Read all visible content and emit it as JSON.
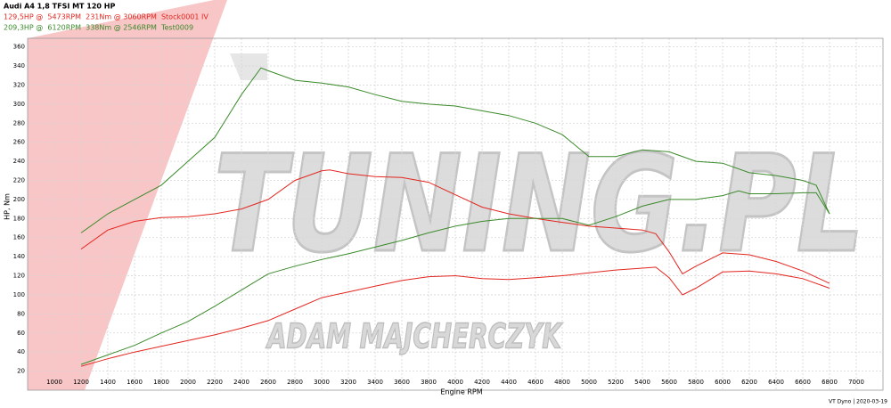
{
  "chart_data": {
    "type": "line",
    "title": "Audi A4 1,8 TFSI MT 120 HP",
    "legend": [
      {
        "text": "129,5HP @  5473RPM  231Nm @ 3060RPM  Stock0001 IV",
        "color": "#e3261f"
      },
      {
        "text": "209,3HP @  6120RPM  338Nm @ 2546RPM  Test0009",
        "color": "#3b8a2b"
      }
    ],
    "watermark": [
      "TUNING.PL",
      "ADAM MAJCHERCZYK"
    ],
    "xlabel": "Engine RPM",
    "ylabel": "HP, Nm",
    "footer": "VT Dyno | 2020-03-19",
    "xlim": [
      800,
      7200
    ],
    "ylim": [
      0,
      369
    ],
    "xticks": [
      1000,
      1200,
      1400,
      1600,
      1800,
      2000,
      2200,
      2400,
      2600,
      2800,
      3000,
      3200,
      3400,
      3600,
      3800,
      4000,
      4200,
      4400,
      4600,
      4800,
      5000,
      5200,
      5400,
      5600,
      5800,
      6000,
      6200,
      6400,
      6600,
      6800,
      7000
    ],
    "yticks": [
      20,
      40,
      60,
      80,
      100,
      120,
      140,
      160,
      180,
      200,
      220,
      240,
      260,
      280,
      300,
      320,
      340,
      360
    ],
    "grid": true,
    "series": [
      {
        "color": "#e3261f",
        "x": [
          1200,
          1400,
          1600,
          1800,
          2000,
          2200,
          2400,
          2600,
          2800,
          3000,
          3060,
          3200,
          3400,
          3600,
          3800,
          4000,
          4200,
          4400,
          4600,
          4800,
          5000,
          5200,
          5400,
          5500,
          5600,
          5700,
          5800,
          6000,
          6200,
          6400,
          6600,
          6800
        ],
        "values": [
          148,
          168,
          177,
          181,
          182,
          185,
          190,
          200,
          220,
          230,
          231,
          227,
          224,
          223,
          218,
          205,
          192,
          185,
          180,
          176,
          172,
          170,
          168,
          164,
          145,
          122,
          130,
          144,
          142,
          135,
          125,
          112
        ]
      },
      {
        "color": "#e3261f",
        "x": [
          1200,
          1400,
          1600,
          1800,
          2000,
          2200,
          2400,
          2600,
          2800,
          3000,
          3200,
          3400,
          3600,
          3800,
          4000,
          4200,
          4400,
          4600,
          4800,
          5000,
          5200,
          5400,
          5500,
          5600,
          5700,
          5800,
          6000,
          6200,
          6400,
          6600,
          6800
        ],
        "values": [
          25,
          33,
          40,
          46,
          52,
          58,
          65,
          73,
          85,
          97,
          103,
          109,
          115,
          119,
          120,
          117,
          116,
          118,
          120,
          123,
          126,
          128,
          129,
          118,
          100,
          107,
          124,
          125,
          122,
          117,
          107
        ]
      },
      {
        "color": "#3b8a2b",
        "x": [
          1200,
          1400,
          1600,
          1800,
          2000,
          2200,
          2400,
          2546,
          2600,
          2800,
          3000,
          3200,
          3400,
          3600,
          3800,
          4000,
          4200,
          4400,
          4600,
          4800,
          5000,
          5200,
          5400,
          5600,
          5800,
          6000,
          6200,
          6400,
          6600,
          6700,
          6800
        ],
        "values": [
          165,
          185,
          200,
          215,
          240,
          265,
          310,
          338,
          335,
          325,
          322,
          318,
          310,
          303,
          300,
          298,
          293,
          288,
          280,
          268,
          245,
          245,
          252,
          250,
          240,
          238,
          228,
          225,
          220,
          215,
          185
        ]
      },
      {
        "color": "#3b8a2b",
        "x": [
          1200,
          1400,
          1600,
          1800,
          2000,
          2200,
          2400,
          2600,
          2800,
          3000,
          3200,
          3400,
          3600,
          3800,
          4000,
          4200,
          4400,
          4600,
          4800,
          5000,
          5200,
          5400,
          5600,
          5800,
          6000,
          6120,
          6200,
          6400,
          6600,
          6700,
          6800
        ],
        "values": [
          27,
          37,
          47,
          60,
          72,
          88,
          105,
          122,
          130,
          137,
          143,
          150,
          157,
          165,
          172,
          177,
          180,
          180,
          180,
          173,
          182,
          193,
          200,
          200,
          204,
          209,
          206,
          206,
          207,
          207,
          185
        ]
      }
    ]
  }
}
